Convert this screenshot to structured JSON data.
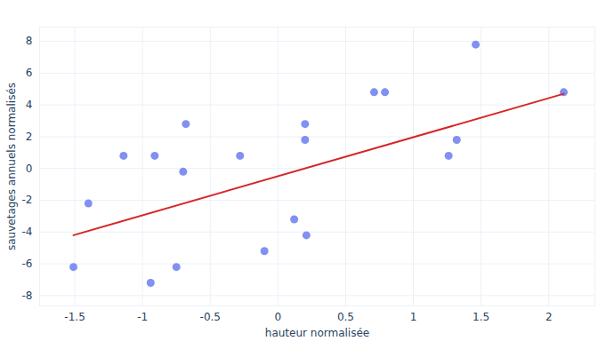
{
  "chart_data": {
    "type": "scatter",
    "xlabel": "hauteur normalisée",
    "ylabel": "sauvetages annuels normalisés",
    "xlim": [
      -1.76,
      2.34
    ],
    "ylim": [
      -8.65,
      8.9
    ],
    "xticks": [
      -1.5,
      -1,
      -0.5,
      0,
      0.5,
      1,
      1.5,
      2
    ],
    "yticks": [
      -8,
      -6,
      -4,
      -2,
      0,
      2,
      4,
      6,
      8
    ],
    "grid": true,
    "series": [
      {
        "type": "scatter",
        "color": "#8190f2",
        "marker": "circle",
        "x": [
          -1.51,
          -1.4,
          -1.14,
          -0.91,
          -0.94,
          -0.75,
          -0.7,
          -0.68,
          -0.28,
          -0.1,
          0.12,
          0.21,
          0.2,
          0.2,
          0.71,
          0.79,
          1.26,
          1.32,
          1.46,
          2.11
        ],
        "values": [
          -6.2,
          -2.2,
          0.8,
          0.8,
          -7.2,
          -6.2,
          -0.2,
          2.8,
          0.8,
          -5.2,
          -3.2,
          -4.2,
          2.8,
          1.8,
          4.8,
          4.8,
          0.8,
          1.8,
          7.8,
          4.8
        ]
      },
      {
        "type": "line",
        "color": "#d62728",
        "line_style": "solid",
        "x": [
          -1.51,
          2.11
        ],
        "values": [
          -4.2,
          4.7
        ]
      }
    ]
  }
}
